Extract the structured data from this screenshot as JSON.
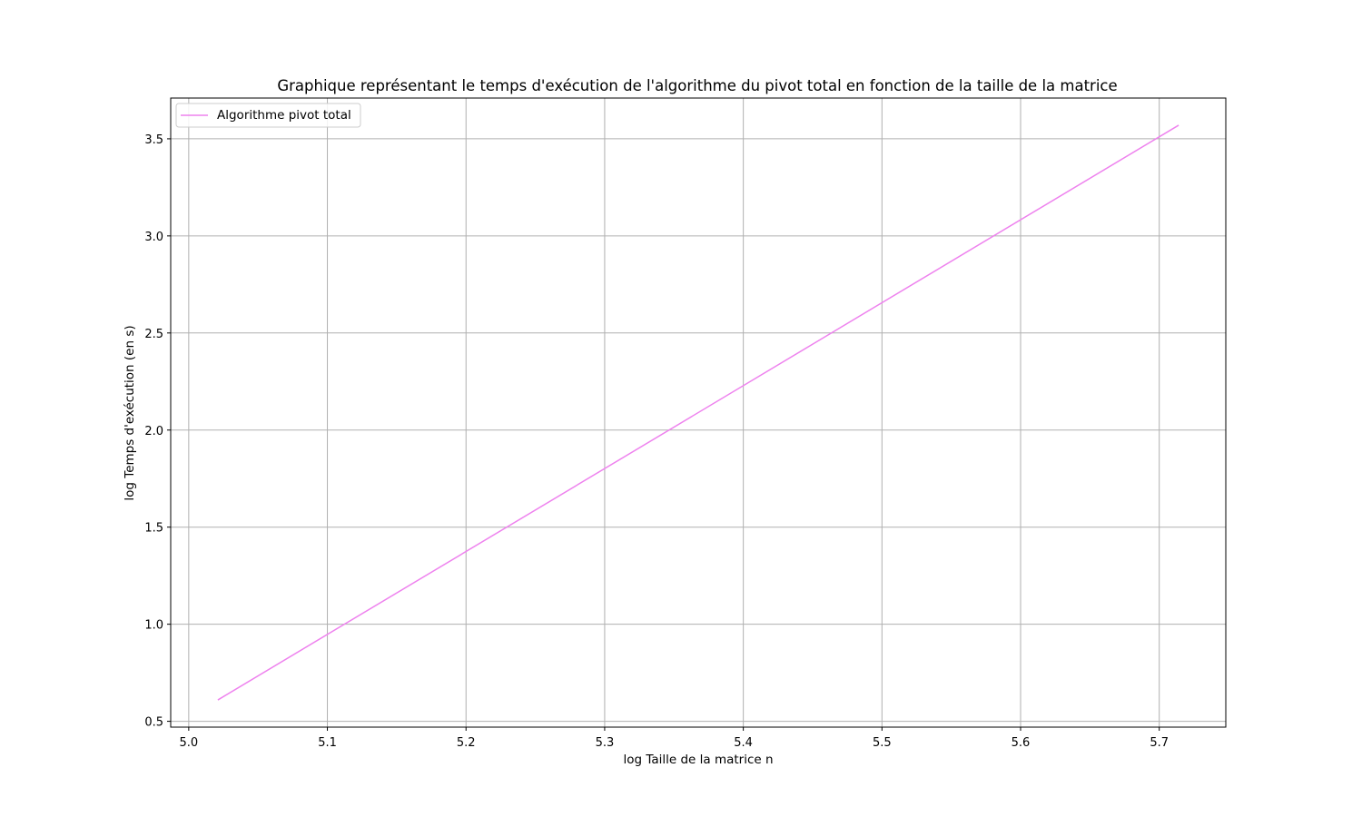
{
  "chart_data": {
    "type": "line",
    "title": "Graphique représentant le temps d'exécution de l'algorithme du pivot total en fonction de la taille de la matrice",
    "xlabel": "log Taille de la matrice n",
    "ylabel": "log Temps d'exécution (en s)",
    "xlim": [
      4.987,
      5.748
    ],
    "ylim": [
      0.47,
      3.71
    ],
    "x_ticks": [
      "5.0",
      "5.1",
      "5.2",
      "5.3",
      "5.4",
      "5.5",
      "5.6",
      "5.7"
    ],
    "y_ticks": [
      "0.5",
      "1.0",
      "1.5",
      "2.0",
      "2.5",
      "3.0",
      "3.5"
    ],
    "grid": true,
    "legend_position": "top-left",
    "series": [
      {
        "name": "Algorithme pivot total",
        "color": "#ee82ee",
        "x": [
          5.021,
          5.714
        ],
        "y": [
          0.61,
          3.57
        ]
      }
    ]
  }
}
